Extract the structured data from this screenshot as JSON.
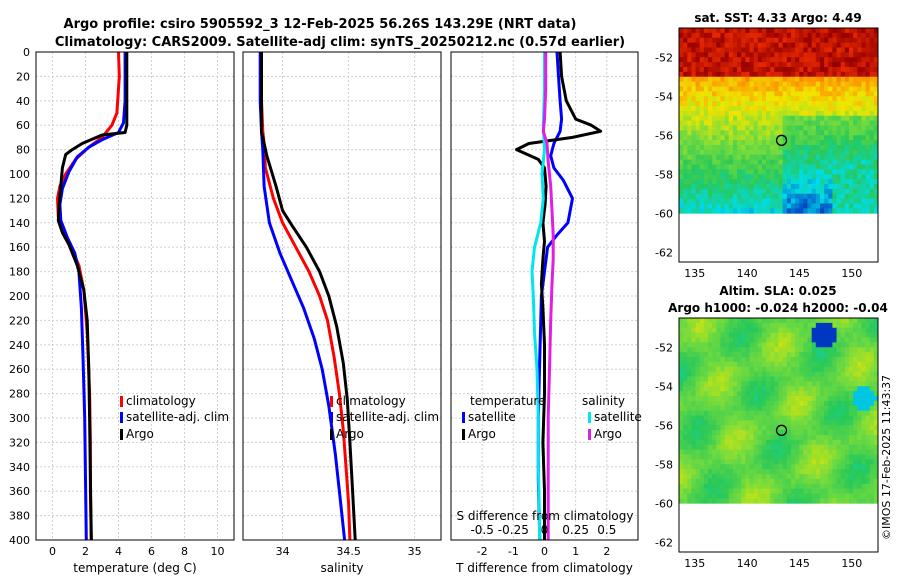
{
  "title": {
    "line1": "Argo profile: csiro 5905592_3 12-Feb-2025 56.26S 143.29E (NRT data)",
    "line2": "Climatology: CARS2009. Satellite-adj clim: synTS_20250212.nc (0.57d earlier)"
  },
  "credit": "©IMOS 17-Feb-2025 11:43:37",
  "colors": {
    "climatology": "#ff0000",
    "satellite": "#0000ff",
    "argo": "#000000",
    "salinity_sat": "#00e5ee",
    "salinity_argo": "#e020e0"
  },
  "chart_data": [
    {
      "type": "line",
      "id": "temperature-panel",
      "xlabel": "temperature (deg C)",
      "ylabel": "",
      "xlim": [
        -1,
        11
      ],
      "ylim": [
        400,
        0
      ],
      "xticks": [
        "0",
        "2",
        "4",
        "6",
        "8",
        "10"
      ],
      "yticks": [
        "0",
        "20",
        "40",
        "60",
        "80",
        "100",
        "120",
        "140",
        "160",
        "180",
        "200",
        "220",
        "240",
        "260",
        "280",
        "300",
        "320",
        "340",
        "360",
        "380",
        "400"
      ],
      "legend": [
        "climatology",
        "satellite-adj. clim",
        "Argo"
      ],
      "series": [
        {
          "name": "climatology",
          "color": "#ff0000",
          "points": [
            [
              4,
              0
            ],
            [
              4.05,
              20
            ],
            [
              3.9,
              50
            ],
            [
              3.6,
              60
            ],
            [
              3,
              70
            ],
            [
              2.2,
              78
            ],
            [
              1.4,
              88
            ],
            [
              0.8,
              100
            ],
            [
              0.45,
              110
            ],
            [
              0.3,
              120
            ],
            [
              0.35,
              135
            ],
            [
              0.6,
              145
            ],
            [
              1.1,
              160
            ],
            [
              1.6,
              175
            ],
            [
              1.9,
              195
            ],
            [
              2.1,
              230
            ],
            [
              2.25,
              280
            ],
            [
              2.3,
              320
            ],
            [
              2.3,
              360
            ],
            [
              2.35,
              400
            ]
          ]
        },
        {
          "name": "satellite-adj. clim",
          "color": "#0000ff",
          "points": [
            [
              4.4,
              0
            ],
            [
              4.4,
              20
            ],
            [
              4.4,
              40
            ],
            [
              4.3,
              58
            ],
            [
              4,
              66
            ],
            [
              3,
              72
            ],
            [
              2.2,
              78
            ],
            [
              1.5,
              86
            ],
            [
              1,
              98
            ],
            [
              0.6,
              112
            ],
            [
              0.45,
              125
            ],
            [
              0.5,
              138
            ],
            [
              0.9,
              152
            ],
            [
              1.35,
              165
            ],
            [
              1.6,
              180
            ],
            [
              1.75,
              210
            ],
            [
              1.85,
              250
            ],
            [
              1.95,
              300
            ],
            [
              2,
              350
            ],
            [
              2.05,
              400
            ]
          ]
        },
        {
          "name": "Argo",
          "color": "#000000",
          "points": [
            [
              4.5,
              0
            ],
            [
              4.5,
              20
            ],
            [
              4.5,
              45
            ],
            [
              4.5,
              60
            ],
            [
              4.4,
              66
            ],
            [
              3,
              68
            ],
            [
              1.8,
              75
            ],
            [
              1.2,
              80
            ],
            [
              0.8,
              84
            ],
            [
              0.6,
              95
            ],
            [
              0.5,
              110
            ],
            [
              0.4,
              125
            ],
            [
              0.35,
              138
            ],
            [
              0.6,
              148
            ],
            [
              1,
              158
            ],
            [
              1.5,
              175
            ],
            [
              1.9,
              195
            ],
            [
              2.1,
              220
            ],
            [
              2.2,
              260
            ],
            [
              2.25,
              300
            ],
            [
              2.3,
              350
            ],
            [
              2.35,
              400
            ]
          ]
        }
      ]
    },
    {
      "type": "line",
      "id": "salinity-panel",
      "xlabel": "salinity",
      "ylabel": "",
      "xlim": [
        33.7,
        35.2
      ],
      "ylim": [
        400,
        0
      ],
      "xticks": [
        "34",
        "34.5",
        "35"
      ],
      "legend": [
        "climatology",
        "satellite-adj. clim",
        "Argo"
      ],
      "series": [
        {
          "name": "climatology",
          "color": "#ff0000",
          "points": [
            [
              33.84,
              0
            ],
            [
              33.84,
              40
            ],
            [
              33.85,
              65
            ],
            [
              33.86,
              75
            ],
            [
              33.87,
              95
            ],
            [
              33.93,
              120
            ],
            [
              34.0,
              140
            ],
            [
              34.1,
              160
            ],
            [
              34.2,
              180
            ],
            [
              34.28,
              200
            ],
            [
              34.34,
              220
            ],
            [
              34.39,
              250
            ],
            [
              34.43,
              280
            ],
            [
              34.46,
              310
            ],
            [
              34.48,
              340
            ],
            [
              34.5,
              370
            ],
            [
              34.51,
              400
            ]
          ]
        },
        {
          "name": "satellite-adj. clim",
          "color": "#0000ff",
          "points": [
            [
              33.83,
              0
            ],
            [
              33.83,
              40
            ],
            [
              33.84,
              65
            ],
            [
              33.85,
              80
            ],
            [
              33.86,
              110
            ],
            [
              33.9,
              140
            ],
            [
              33.98,
              165
            ],
            [
              34.06,
              185
            ],
            [
              34.16,
              210
            ],
            [
              34.24,
              235
            ],
            [
              34.3,
              260
            ],
            [
              34.35,
              290
            ],
            [
              34.4,
              330
            ],
            [
              34.44,
              370
            ],
            [
              34.47,
              400
            ]
          ]
        },
        {
          "name": "Argo",
          "color": "#000000",
          "points": [
            [
              33.84,
              0
            ],
            [
              33.84,
              40
            ],
            [
              33.84,
              66
            ],
            [
              33.85,
              70
            ],
            [
              33.88,
              85
            ],
            [
              33.95,
              110
            ],
            [
              34.0,
              130
            ],
            [
              34.07,
              142
            ],
            [
              34.18,
              160
            ],
            [
              34.28,
              180
            ],
            [
              34.35,
              200
            ],
            [
              34.41,
              225
            ],
            [
              34.46,
              255
            ],
            [
              34.49,
              285
            ],
            [
              34.51,
              320
            ],
            [
              34.53,
              360
            ],
            [
              34.55,
              400
            ]
          ]
        }
      ]
    },
    {
      "type": "line",
      "id": "difference-panel",
      "xlabel": "T difference from climatology",
      "x2label": "S difference from climatology",
      "xlim": [
        -3,
        3
      ],
      "x2lim": [
        -0.75,
        0.75
      ],
      "ylim": [
        400,
        0
      ],
      "xticks": [
        "-2",
        "-1",
        "0",
        "1",
        "2"
      ],
      "x2ticks": [
        "-0.5",
        "-0.25",
        "0",
        "0.25",
        "0.5"
      ],
      "legend": {
        "temperature_heading": "temperature",
        "salinity_heading": "salinity",
        "temperature_items": [
          "satellite",
          "Argo"
        ],
        "salinity_items": [
          "satellite",
          "Argo"
        ]
      },
      "series": [
        {
          "name": "temperature satellite",
          "axis": "T",
          "color": "#0000ff",
          "points": [
            [
              0.4,
              0
            ],
            [
              0.45,
              20
            ],
            [
              0.5,
              40
            ],
            [
              0.55,
              55
            ],
            [
              0.5,
              65
            ],
            [
              0.3,
              75
            ],
            [
              0.2,
              85
            ],
            [
              0.3,
              95
            ],
            [
              0.6,
              105
            ],
            [
              0.9,
              120
            ],
            [
              0.75,
              140
            ],
            [
              0.4,
              150
            ],
            [
              0.1,
              160
            ],
            [
              0,
              180
            ],
            [
              -0.1,
              200
            ],
            [
              -0.15,
              250
            ],
            [
              -0.2,
              300
            ],
            [
              -0.2,
              350
            ],
            [
              -0.15,
              400
            ]
          ]
        },
        {
          "name": "temperature Argo",
          "axis": "T",
          "color": "#000000",
          "points": [
            [
              0.5,
              0
            ],
            [
              0.55,
              20
            ],
            [
              0.7,
              40
            ],
            [
              1.0,
              55
            ],
            [
              1.5,
              60
            ],
            [
              1.8,
              65
            ],
            [
              0.9,
              70
            ],
            [
              -0.5,
              75
            ],
            [
              -0.9,
              80
            ],
            [
              -0.2,
              88
            ],
            [
              0,
              95
            ],
            [
              0.05,
              110
            ],
            [
              0.02,
              125
            ],
            [
              -0.05,
              140
            ],
            [
              0.0,
              155
            ],
            [
              -0.05,
              170
            ],
            [
              -0.1,
              190
            ],
            [
              -0.05,
              210
            ],
            [
              0,
              240
            ],
            [
              0,
              280
            ],
            [
              -0.05,
              320
            ],
            [
              0,
              360
            ],
            [
              0,
              400
            ]
          ]
        },
        {
          "name": "salinity satellite",
          "axis": "S",
          "color": "#00e5ee",
          "points": [
            [
              0,
              0
            ],
            [
              0,
              30
            ],
            [
              -0.01,
              60
            ],
            [
              0,
              80
            ],
            [
              -0.02,
              100
            ],
            [
              -0.01,
              120
            ],
            [
              -0.03,
              140
            ],
            [
              -0.08,
              160
            ],
            [
              -0.1,
              180
            ],
            [
              -0.09,
              200
            ],
            [
              -0.08,
              230
            ],
            [
              -0.06,
              260
            ],
            [
              -0.05,
              300
            ],
            [
              -0.05,
              340
            ],
            [
              -0.04,
              380
            ],
            [
              -0.04,
              400
            ]
          ]
        },
        {
          "name": "salinity Argo",
          "axis": "S",
          "color": "#e020e0",
          "points": [
            [
              0.01,
              0
            ],
            [
              0.01,
              30
            ],
            [
              0.0,
              55
            ],
            [
              -0.01,
              65
            ],
            [
              0.02,
              75
            ],
            [
              0.03,
              90
            ],
            [
              0.05,
              110
            ],
            [
              0.06,
              130
            ],
            [
              0.07,
              150
            ],
            [
              0.07,
              170
            ],
            [
              0.06,
              190
            ],
            [
              0.05,
              220
            ],
            [
              0.04,
              260
            ],
            [
              0.03,
              300
            ],
            [
              0.03,
              340
            ],
            [
              0.03,
              380
            ],
            [
              0.03,
              400
            ]
          ]
        }
      ]
    },
    {
      "type": "heatmap",
      "id": "sst-map",
      "title": "sat. SST: 4.33 Argo: 4.49",
      "xlim": [
        133.5,
        152.5
      ],
      "ylim": [
        -62.5,
        -50.5
      ],
      "data_ylim": [
        -60,
        -50.5
      ],
      "xticks": [
        "135",
        "140",
        "145",
        "150"
      ],
      "yticks": [
        "-52",
        "-54",
        "-56",
        "-58",
        "-60",
        "-62"
      ],
      "argo_position": [
        143.29,
        -56.26
      ]
    },
    {
      "type": "heatmap",
      "id": "sla-map",
      "title": "Altim. SLA: 0.025",
      "subtitle": "Argo h1000: -0.024 h2000: -0.04",
      "xlim": [
        133.5,
        152.5
      ],
      "ylim": [
        -62.5,
        -50.5
      ],
      "data_ylim": [
        -60,
        -50.5
      ],
      "xticks": [
        "135",
        "140",
        "145",
        "150"
      ],
      "yticks": [
        "-52",
        "-54",
        "-56",
        "-58",
        "-60",
        "-62"
      ],
      "argo_position": [
        143.29,
        -56.26
      ]
    }
  ]
}
